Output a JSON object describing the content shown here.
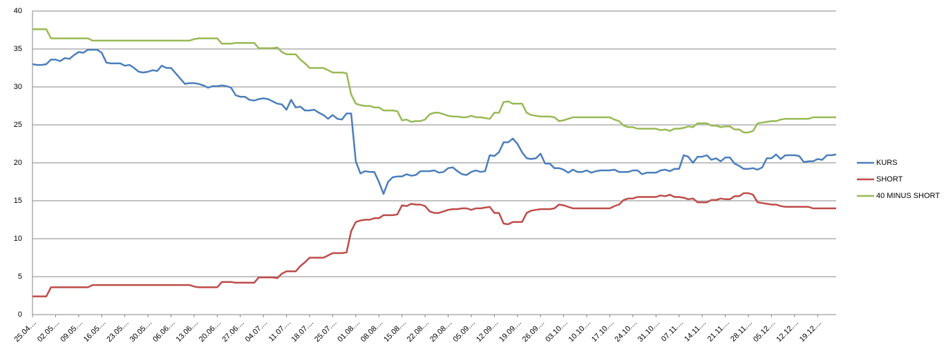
{
  "chart_data": {
    "type": "line",
    "categories": [
      "25.04....",
      null,
      null,
      null,
      null,
      "02.05....",
      null,
      null,
      null,
      null,
      "09.05....",
      null,
      null,
      null,
      null,
      "16.05....",
      null,
      null,
      null,
      null,
      "23.05....",
      null,
      null,
      null,
      null,
      "30.05....",
      null,
      null,
      null,
      null,
      "06.06....",
      null,
      null,
      null,
      null,
      "13.06....",
      null,
      null,
      null,
      null,
      "20.06....",
      null,
      null,
      null,
      null,
      "27.06....",
      null,
      null,
      null,
      null,
      "04.07....",
      null,
      null,
      null,
      null,
      "11.07....",
      null,
      null,
      null,
      null,
      "18.07....",
      null,
      null,
      null,
      null,
      "25.07....",
      null,
      null,
      null,
      null,
      "01.08....",
      null,
      null,
      null,
      null,
      "08.08....",
      null,
      null,
      null,
      null,
      "15.08....",
      null,
      null,
      null,
      null,
      "22.08....",
      null,
      null,
      null,
      null,
      "29.08....",
      null,
      null,
      null,
      null,
      "05.09....",
      null,
      null,
      null,
      null,
      "12.09....",
      null,
      null,
      null,
      null,
      "19.09....",
      null,
      null,
      null,
      null,
      "26.09....",
      null,
      null,
      null,
      null,
      "03.10....",
      null,
      null,
      null,
      null,
      "10.10....",
      null,
      null,
      null,
      null,
      "17.10....",
      null,
      null,
      null,
      null,
      "24.10....",
      null,
      null,
      null,
      null,
      "31.10....",
      null,
      null,
      null,
      null,
      "07.11....",
      null,
      null,
      null,
      null,
      "14.11....",
      null,
      null,
      null,
      null,
      "21.11....",
      null,
      null,
      null,
      null,
      "28.11....",
      null,
      null,
      null,
      null,
      "05.12....",
      null,
      null,
      null,
      null,
      "12.12....",
      null,
      null,
      null,
      null,
      "19.12....",
      null,
      null,
      null,
      null
    ],
    "series": [
      {
        "name": "KURS",
        "color": "#4a7ebb",
        "values": [
          33,
          32.9,
          32.9,
          33,
          33.6,
          33.6,
          33.4,
          33.8,
          33.7,
          34.2,
          34.6,
          34.5,
          34.9,
          34.9,
          34.9,
          34.5,
          33.2,
          33.1,
          33.1,
          33.1,
          32.8,
          32.9,
          32.5,
          32,
          31.9,
          32,
          32.2,
          32.1,
          32.8,
          32.5,
          32.5,
          31.8,
          31.1,
          30.4,
          30.5,
          30.5,
          30.4,
          30.2,
          29.9,
          30.1,
          30.1,
          30.2,
          30.1,
          29.9,
          28.9,
          28.7,
          28.7,
          28.3,
          28.2,
          28.4,
          28.5,
          28.4,
          28.1,
          27.8,
          27.7,
          27,
          28.3,
          27.3,
          27.4,
          26.9,
          26.9,
          27,
          26.6,
          26.3,
          25.8,
          26.3,
          25.8,
          25.7,
          26.5,
          26.5,
          20.2,
          18.6,
          18.9,
          18.8,
          18.8,
          17.5,
          15.9,
          17.5,
          18.1,
          18.2,
          18.2,
          18.5,
          18.3,
          18.4,
          18.9,
          18.9,
          18.9,
          19,
          18.7,
          18.8,
          19.3,
          19.4,
          18.9,
          18.5,
          18.4,
          18.8,
          19,
          18.8,
          18.9,
          21,
          20.9,
          21.4,
          22.7,
          22.7,
          23.2,
          22.5,
          21.4,
          20.6,
          20.5,
          20.6,
          21.2,
          19.9,
          19.9,
          19.3,
          19.3,
          19.1,
          18.7,
          19.1,
          18.8,
          18.8,
          19,
          18.7,
          18.9,
          19,
          19,
          19,
          19.1,
          18.8,
          18.8,
          18.8,
          19,
          19,
          18.5,
          18.7,
          18.7,
          18.7,
          19,
          19.1,
          18.9,
          19.2,
          19.2,
          21,
          20.8,
          20,
          20.8,
          20.8,
          21,
          20.4,
          20.6,
          20.2,
          20.7,
          20.7,
          19.9,
          19.6,
          19.2,
          19.2,
          19.3,
          19.1,
          19.4,
          20.6,
          20.6,
          21.1,
          20.5,
          21,
          21,
          21,
          20.9,
          20.1,
          20.2,
          20.2,
          20.5,
          20.4,
          21,
          21,
          21.1
        ]
      },
      {
        "name": "SHORT",
        "color": "#be4b48",
        "values": [
          2.4,
          2.4,
          2.4,
          2.4,
          3.6,
          3.6,
          3.6,
          3.6,
          3.6,
          3.6,
          3.6,
          3.6,
          3.6,
          3.9,
          3.9,
          3.9,
          3.9,
          3.9,
          3.9,
          3.9,
          3.9,
          3.9,
          3.9,
          3.9,
          3.9,
          3.9,
          3.9,
          3.9,
          3.9,
          3.9,
          3.9,
          3.9,
          3.9,
          3.9,
          3.9,
          3.7,
          3.6,
          3.6,
          3.6,
          3.6,
          3.6,
          4.3,
          4.3,
          4.3,
          4.2,
          4.2,
          4.2,
          4.2,
          4.2,
          4.9,
          4.9,
          4.9,
          4.9,
          4.8,
          5.4,
          5.7,
          5.7,
          5.7,
          6.4,
          6.9,
          7.5,
          7.5,
          7.5,
          7.5,
          7.8,
          8.1,
          8.1,
          8.1,
          8.2,
          11,
          12.2,
          12.4,
          12.5,
          12.5,
          12.7,
          12.7,
          13.1,
          13.1,
          13.1,
          13.2,
          14.4,
          14.3,
          14.6,
          14.5,
          14.5,
          14.3,
          13.6,
          13.4,
          13.4,
          13.6,
          13.8,
          13.9,
          13.9,
          14,
          14,
          13.8,
          14,
          14,
          14.1,
          14.2,
          13.4,
          13.4,
          12,
          11.9,
          12.2,
          12.2,
          12.2,
          13.4,
          13.7,
          13.8,
          13.9,
          13.9,
          13.9,
          14,
          14.5,
          14.4,
          14.2,
          14,
          14,
          14,
          14,
          14,
          14,
          14,
          14,
          14,
          14.3,
          14.5,
          15.1,
          15.3,
          15.3,
          15.5,
          15.5,
          15.5,
          15.5,
          15.5,
          15.7,
          15.6,
          15.8,
          15.5,
          15.5,
          15.4,
          15.2,
          15.3,
          14.8,
          14.8,
          14.8,
          15.1,
          15.1,
          15.3,
          15.2,
          15.2,
          15.6,
          15.6,
          16,
          16,
          15.8,
          14.8,
          14.7,
          14.6,
          14.5,
          14.5,
          14.3,
          14.2,
          14.2,
          14.2,
          14.2,
          14.2,
          14.2,
          14,
          14,
          14,
          14,
          14,
          14
        ]
      },
      {
        "name": "40 MINUS SHORT",
        "color": "#98b954",
        "values": [
          37.6,
          37.6,
          37.6,
          37.6,
          36.4,
          36.4,
          36.4,
          36.4,
          36.4,
          36.4,
          36.4,
          36.4,
          36.4,
          36.1,
          36.1,
          36.1,
          36.1,
          36.1,
          36.1,
          36.1,
          36.1,
          36.1,
          36.1,
          36.1,
          36.1,
          36.1,
          36.1,
          36.1,
          36.1,
          36.1,
          36.1,
          36.1,
          36.1,
          36.1,
          36.1,
          36.3,
          36.4,
          36.4,
          36.4,
          36.4,
          36.4,
          35.7,
          35.7,
          35.7,
          35.8,
          35.8,
          35.8,
          35.8,
          35.8,
          35.1,
          35.1,
          35.1,
          35.1,
          35.2,
          34.6,
          34.3,
          34.3,
          34.3,
          33.6,
          33.1,
          32.5,
          32.5,
          32.5,
          32.5,
          32.2,
          31.9,
          31.9,
          31.9,
          31.8,
          29,
          27.8,
          27.6,
          27.5,
          27.5,
          27.3,
          27.3,
          26.9,
          26.9,
          26.9,
          26.8,
          25.6,
          25.7,
          25.4,
          25.5,
          25.5,
          25.7,
          26.4,
          26.6,
          26.6,
          26.4,
          26.2,
          26.1,
          26.1,
          26,
          26,
          26.2,
          26,
          26,
          25.9,
          25.8,
          26.6,
          26.6,
          28,
          28.1,
          27.8,
          27.8,
          27.8,
          26.6,
          26.3,
          26.2,
          26.1,
          26.1,
          26.1,
          26,
          25.5,
          25.6,
          25.8,
          26,
          26,
          26,
          26,
          26,
          26,
          26,
          26,
          26,
          25.7,
          25.5,
          24.9,
          24.7,
          24.7,
          24.5,
          24.5,
          24.5,
          24.5,
          24.5,
          24.3,
          24.4,
          24.2,
          24.5,
          24.5,
          24.6,
          24.8,
          24.7,
          25.2,
          25.2,
          25.2,
          24.9,
          24.9,
          24.7,
          24.8,
          24.8,
          24.4,
          24.4,
          24,
          24,
          24.2,
          25.2,
          25.3,
          25.4,
          25.5,
          25.5,
          25.7,
          25.8,
          25.8,
          25.8,
          25.8,
          25.8,
          25.8,
          26,
          26,
          26,
          26,
          26,
          26
        ]
      }
    ],
    "ylim": [
      0,
      40
    ],
    "yticks": [
      0,
      5,
      10,
      15,
      20,
      25,
      30,
      35,
      40
    ],
    "grid": true,
    "legend": "right"
  }
}
